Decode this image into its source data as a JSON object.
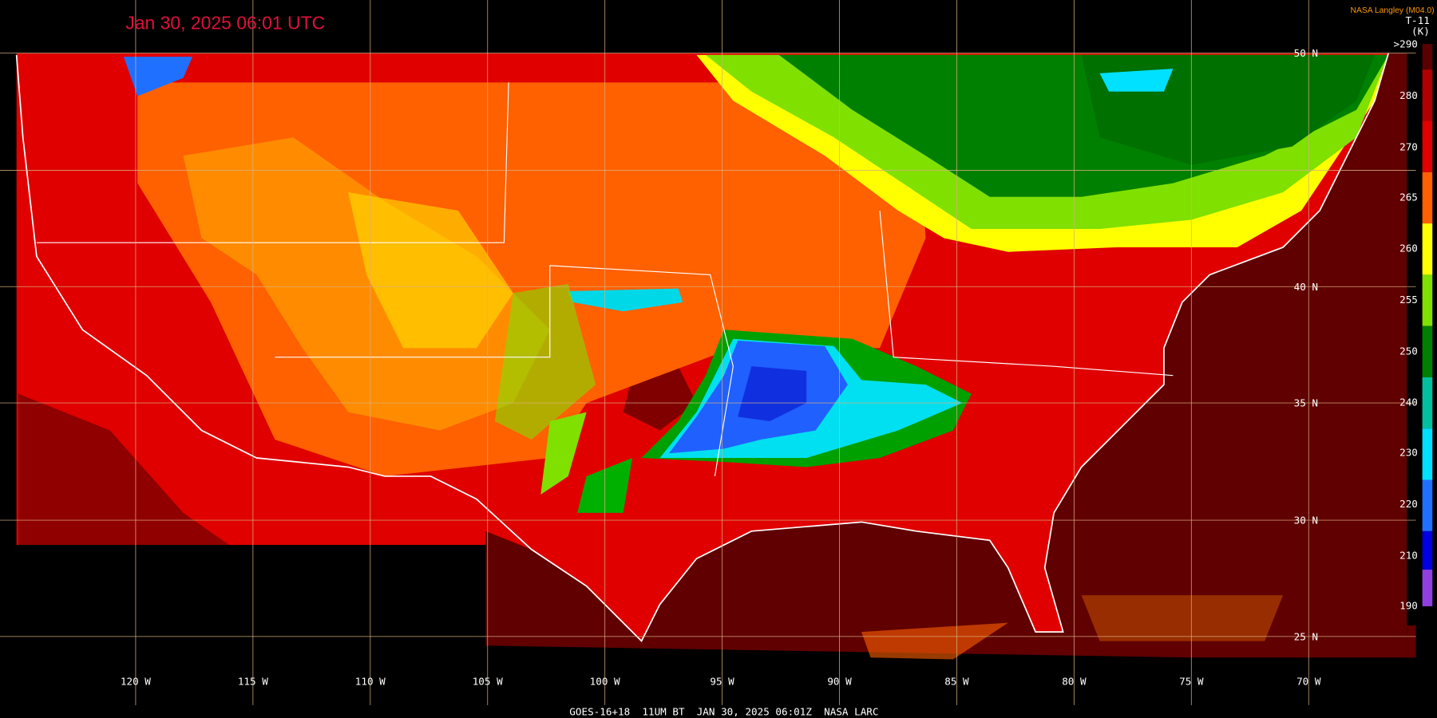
{
  "header": {
    "title": "Jan 30, 2025 06:01 UTC",
    "credit": "NASA Langley (M04.0)",
    "product": "T-11",
    "unit": "(K)"
  },
  "colorbar": {
    "labels": [
      ">290",
      "280",
      "270",
      "265",
      "260",
      "255",
      "250",
      "240",
      "230",
      "220",
      "210",
      "190"
    ]
  },
  "grid": {
    "lat_labels": [
      "50 N",
      "40 N",
      "35 N",
      "30 N",
      "25 N"
    ],
    "lon_labels": [
      "120 W",
      "115 W",
      "110 W",
      "105 W",
      "100 W",
      "95 W",
      "90 W",
      "85 W",
      "80 W",
      "75 W",
      "70 W"
    ]
  },
  "footer": "GOES-16+18  11UM BT  JAN 30, 2025 06:01Z  NASA LARC"
}
